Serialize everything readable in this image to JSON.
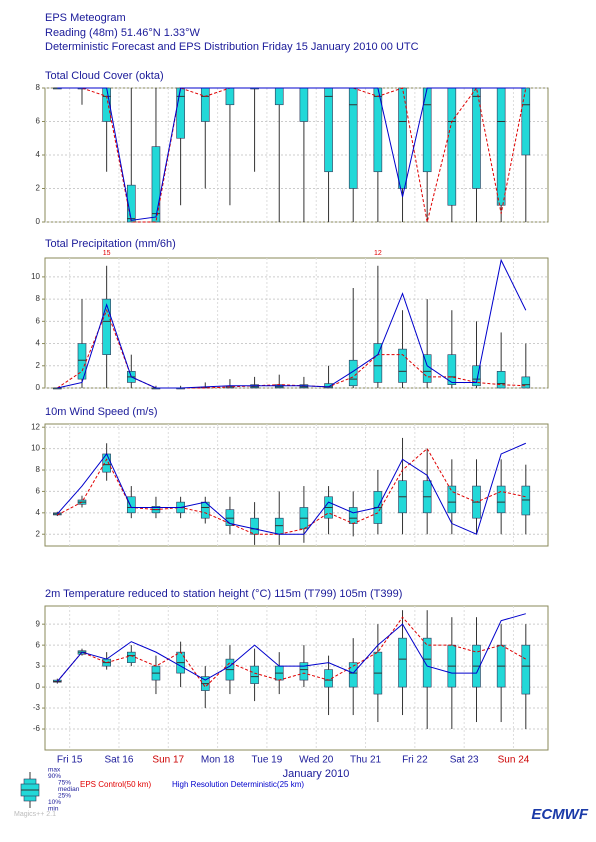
{
  "header": {
    "title": "EPS Meteogram",
    "location": "Reading (48m) 51.46°N 1.33°W",
    "subtitle": "Deterministic Forecast and EPS Distribution Friday 15 January 2010 00 UTC"
  },
  "time_axis": {
    "label": "January 2010",
    "xlim": [
      0,
      10.2
    ],
    "x": [
      0.25,
      0.75,
      1.25,
      1.75,
      2.25,
      2.75,
      3.25,
      3.75,
      4.25,
      4.75,
      5.25,
      5.75,
      6.25,
      6.75,
      7.25,
      7.75,
      8.25,
      8.75,
      9.25,
      9.75
    ],
    "xticks": [
      {
        "value": 0.5,
        "label": "Fri 15",
        "color": "#1a1a99"
      },
      {
        "value": 1.5,
        "label": "Sat 16",
        "color": "#1a1a99"
      },
      {
        "value": 2.5,
        "label": "Sun 17",
        "color": "#cc0000"
      },
      {
        "value": 3.5,
        "label": "Mon 18",
        "color": "#1a1a99"
      },
      {
        "value": 4.5,
        "label": "Tue 19",
        "color": "#1a1a99"
      },
      {
        "value": 5.5,
        "label": "Wed 20",
        "color": "#1a1a99"
      },
      {
        "value": 6.5,
        "label": "Thu 21",
        "color": "#1a1a99"
      },
      {
        "value": 7.5,
        "label": "Fri 22",
        "color": "#1a1a99"
      },
      {
        "value": 8.5,
        "label": "Sat 23",
        "color": "#1a1a99"
      },
      {
        "value": 9.5,
        "label": "Sun 24",
        "color": "#cc0000"
      }
    ]
  },
  "legend": {
    "stats": [
      "max",
      "90%",
      "75%",
      "median",
      "25%",
      "10%",
      "min"
    ],
    "box_color": "#22d8d8",
    "control": {
      "name": "EPS Control(50 km)",
      "color": "#e00000"
    },
    "hres": {
      "name": "High Resolution Deterministic(25 km)",
      "color": "#0000cc"
    }
  },
  "footer": {
    "logo": "ECMWF",
    "software": "Magics++ 2.1"
  },
  "chart_data": [
    {
      "type": "boxplot",
      "title": "Total Cloud Cover (okta)",
      "ylim": [
        0,
        8
      ],
      "yticks": [
        0,
        2,
        4,
        6,
        8
      ],
      "grid": true,
      "min": [
        8,
        7,
        3,
        0,
        0,
        1,
        2,
        1,
        3,
        0,
        0,
        0,
        0,
        0,
        0,
        0,
        0,
        0,
        0,
        0
      ],
      "q1": [
        8,
        8,
        6,
        0,
        0,
        5,
        6,
        7,
        8,
        7,
        6,
        3,
        2,
        3,
        2,
        3,
        1,
        2,
        1,
        4
      ],
      "median": [
        8,
        8,
        7.5,
        0.2,
        0.5,
        7.5,
        7.5,
        8,
        8,
        8,
        8,
        7.5,
        7,
        7.5,
        6,
        7,
        6,
        7.5,
        6,
        7
      ],
      "q3": [
        8,
        8,
        8,
        2.2,
        4.5,
        8,
        8,
        8,
        8,
        8,
        8,
        8,
        8,
        8,
        8,
        8,
        8,
        8,
        8,
        8
      ],
      "max": [
        8,
        8,
        8,
        8,
        8,
        8,
        8,
        8,
        8,
        8,
        8,
        8,
        8,
        8,
        8,
        8,
        8,
        8,
        8,
        8
      ],
      "control": [
        8,
        8,
        7.5,
        0,
        0,
        8,
        7.5,
        8,
        8,
        8,
        8,
        8,
        8,
        7.5,
        8,
        0,
        6,
        8,
        0.5,
        8
      ],
      "hres": [
        8,
        8,
        8,
        0.1,
        0.3,
        8,
        8,
        8,
        8,
        8,
        8,
        8,
        8,
        8,
        1.5,
        8,
        8,
        8,
        8,
        8
      ]
    },
    {
      "type": "boxplot",
      "title": "Total Precipitation (mm/6h)",
      "ylim": [
        0,
        11.7
      ],
      "yticks": [
        0,
        2,
        4,
        6,
        8,
        10
      ],
      "grid": true,
      "annotations": [
        {
          "x": 1.25,
          "value": 15
        },
        {
          "x": 6.75,
          "value": 12
        }
      ],
      "min": [
        0,
        0,
        0,
        0,
        0,
        0,
        0,
        0,
        0,
        0,
        0,
        0,
        0,
        0,
        0,
        0,
        0,
        0,
        0,
        0
      ],
      "q1": [
        0,
        0.8,
        3,
        0.5,
        0,
        0,
        0,
        0,
        0,
        0,
        0,
        0,
        0.2,
        0.5,
        0.5,
        0.5,
        0.3,
        0.2,
        0,
        0
      ],
      "median": [
        0,
        2.5,
        6,
        1,
        0,
        0,
        0.05,
        0.1,
        0.1,
        0.1,
        0.1,
        0.1,
        0.8,
        2,
        1.5,
        1.5,
        1,
        0.8,
        0.4,
        0.3
      ],
      "q3": [
        0,
        4,
        8,
        1.5,
        0,
        0,
        0.1,
        0.2,
        0.3,
        0.3,
        0.3,
        0.4,
        2.5,
        4,
        3.5,
        3,
        3,
        2,
        1.5,
        1
      ],
      "max": [
        0,
        8,
        11,
        3,
        0.2,
        0.2,
        0.5,
        0.8,
        1,
        1.2,
        1,
        2,
        9,
        11,
        7,
        8,
        7,
        6,
        5,
        4
      ],
      "control": [
        0,
        1.5,
        7,
        1,
        0,
        0,
        0,
        0.1,
        0.2,
        0.3,
        0.2,
        0.1,
        1,
        3,
        3,
        1,
        1,
        0.5,
        0.3,
        0.2
      ],
      "hres": [
        0,
        0.5,
        7.5,
        1,
        0,
        0,
        0.1,
        0.2,
        0.2,
        0.2,
        0.2,
        0.1,
        1.5,
        3,
        8.5,
        2,
        0.5,
        0.5,
        11.5,
        7
      ]
    },
    {
      "type": "boxplot",
      "title": "10m Wind Speed (m/s)",
      "ylim": [
        0.9,
        12.3
      ],
      "yticks": [
        2,
        4,
        6,
        8,
        10,
        12
      ],
      "grid": true,
      "min": [
        3.7,
        4.5,
        7,
        3.5,
        3.5,
        3.5,
        3,
        2,
        1,
        1,
        1.2,
        2,
        1.8,
        2,
        2,
        2,
        2,
        2,
        2,
        2
      ],
      "q1": [
        3.8,
        4.8,
        7.8,
        4,
        4,
        4,
        3.5,
        2.8,
        2,
        2,
        2.5,
        3.5,
        3,
        3,
        4,
        4,
        4,
        3.5,
        4,
        3.8
      ],
      "median": [
        3.9,
        5,
        8.5,
        4.5,
        4.3,
        4.5,
        4.5,
        3.5,
        2.5,
        2.8,
        3.5,
        4.5,
        3.5,
        4.5,
        5.5,
        5.5,
        5,
        5,
        5,
        5.2
      ],
      "q3": [
        4,
        5.2,
        9.5,
        5.5,
        4.6,
        5,
        5,
        4.3,
        3.5,
        3.5,
        4.5,
        5.5,
        4.5,
        6,
        7,
        7,
        6.5,
        6.5,
        6.5,
        6.5
      ],
      "max": [
        4.1,
        5.6,
        10.5,
        6.5,
        5.5,
        5.5,
        5.5,
        5.5,
        5,
        6,
        6.5,
        6.5,
        6,
        8,
        11,
        10,
        9,
        9,
        9,
        8.5
      ],
      "control": [
        3.8,
        5,
        9,
        4.5,
        4.3,
        4.5,
        4,
        3,
        2,
        2,
        2.5,
        4,
        3,
        4,
        8,
        10,
        6,
        5,
        6,
        5.5
      ],
      "hres": [
        3.9,
        6.5,
        9.5,
        4.5,
        4.5,
        4.5,
        5,
        3,
        2.5,
        2,
        2,
        5,
        4,
        4.5,
        9,
        7.5,
        3,
        2,
        9.5,
        10.5
      ]
    },
    {
      "type": "boxplot",
      "title": "2m Temperature reduced to station height (°C) 115m (T799) 105m (T399)",
      "ylim": [
        -9,
        11.6
      ],
      "yticks": [
        -6,
        -3,
        0,
        3,
        6,
        9
      ],
      "grid": true,
      "min": [
        0.5,
        4.5,
        2.5,
        3,
        -1,
        0,
        -3,
        -1,
        -2,
        -1,
        0,
        -4,
        -4,
        -5,
        -4,
        -6,
        -6,
        -5,
        -5,
        -6
      ],
      "q1": [
        0.7,
        4.7,
        3,
        3.5,
        1,
        2,
        -0.5,
        1,
        0.5,
        1,
        1,
        0,
        0,
        -1,
        0,
        0,
        0,
        0,
        0,
        -1
      ],
      "median": [
        0.8,
        5,
        3.5,
        4.5,
        2,
        3.5,
        0.5,
        2.5,
        1.5,
        2,
        2.5,
        1,
        2,
        2,
        4,
        4,
        3,
        3,
        3,
        3
      ],
      "q3": [
        1,
        5.2,
        4,
        5,
        3,
        5,
        1.5,
        4,
        3,
        3,
        3.5,
        2.5,
        3.5,
        5,
        7,
        7,
        6,
        6,
        6,
        6
      ],
      "max": [
        1.2,
        5.5,
        5,
        6,
        4.5,
        6.5,
        3,
        6,
        5.5,
        5,
        6,
        4.5,
        7,
        9,
        11,
        11,
        10,
        10,
        9,
        9
      ],
      "control": [
        0.8,
        5,
        3.5,
        4.5,
        3,
        5,
        0,
        3.5,
        2,
        1,
        2,
        1,
        3,
        5,
        10,
        6,
        6,
        5,
        6,
        4
      ],
      "hres": [
        0.8,
        5,
        4,
        6.5,
        5,
        3,
        1,
        3,
        6,
        3,
        3,
        3.5,
        2,
        6,
        9,
        3,
        2,
        2,
        9.5,
        10.5
      ]
    }
  ]
}
